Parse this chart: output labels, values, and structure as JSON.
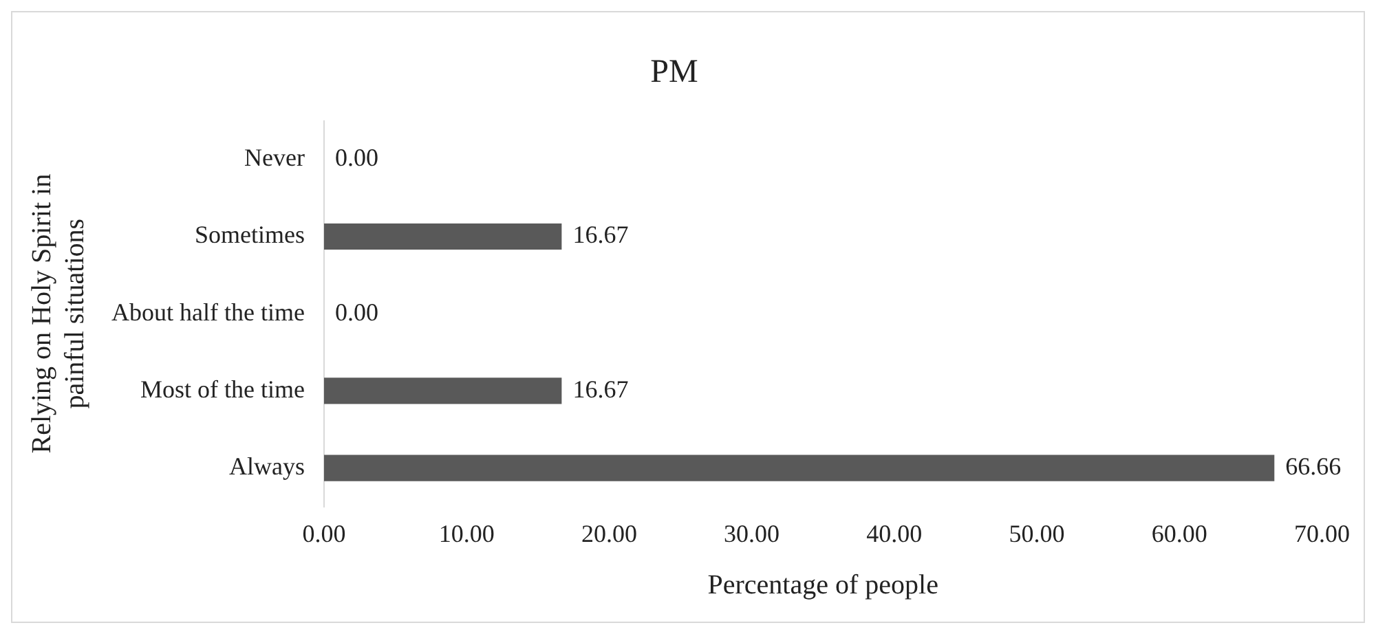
{
  "chart_data": {
    "type": "bar",
    "orientation": "horizontal",
    "title": "PM",
    "xlabel": "Percentage of people",
    "ylabel": "Relying on Holy Spirit in painful situations",
    "categories": [
      "Never",
      "Sometimes",
      "About half the time",
      "Most of the time",
      "Always"
    ],
    "values": [
      0,
      16.67,
      0,
      16.67,
      66.66
    ],
    "value_labels": [
      "0.00",
      "16.67",
      "0.00",
      "16.67",
      "66.66"
    ],
    "color": "#595959",
    "xlim": [
      0,
      70
    ],
    "xticks": [
      {
        "value": 0,
        "label": "0.00"
      },
      {
        "value": 10,
        "label": "10.00"
      },
      {
        "value": 20,
        "label": "20.00"
      },
      {
        "value": 30,
        "label": "30.00"
      },
      {
        "value": 40,
        "label": "40.00"
      },
      {
        "value": 50,
        "label": "50.00"
      },
      {
        "value": 60,
        "label": "60.00"
      },
      {
        "value": 70,
        "label": "70.00"
      }
    ],
    "grid": false,
    "legend": false
  }
}
